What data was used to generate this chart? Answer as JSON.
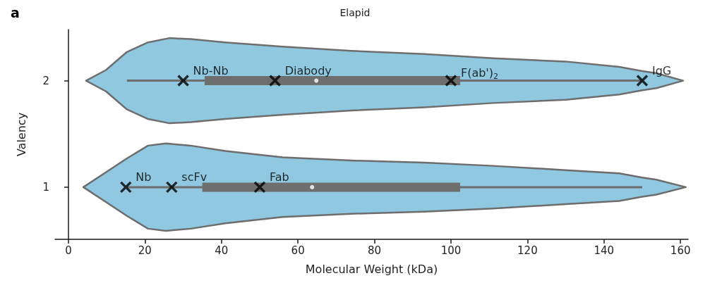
{
  "chart_data": {
    "type": "line",
    "title": "Elapid",
    "xlabel": "Molecular Weight (kDa)",
    "ylabel": "Valency",
    "annotations": [
      "a",
      {
        "text": "Nb-Nb",
        "x": 30,
        "y": 2
      },
      {
        "text": "Diabody",
        "x": 54,
        "y": 2
      },
      {
        "text": "F(ab')$_{2}$",
        "x": 100,
        "y": 2
      },
      {
        "text": "IgG",
        "x": 150,
        "y": 2
      },
      {
        "text": "Nb",
        "x": 15,
        "y": 1
      },
      {
        "text": "scFv",
        "x": 27,
        "y": 1
      },
      {
        "text": "Fab",
        "x": 50,
        "y": 1
      }
    ],
    "xlim": [
      -3.5,
      162
    ],
    "xticks": [
      0,
      20,
      40,
      60,
      80,
      100,
      120,
      140,
      160
    ],
    "ylim": [
      0.51,
      2.48
    ],
    "yticks": [
      1,
      2
    ],
    "grid": false,
    "colors": [
      "#90c8df",
      "#8fc8e0"
    ],
    "series": [
      {
        "type": "line",
        "color": "#6e6e6e",
        "x": [
          4.6,
          9.8,
          15.3,
          20.8,
          26.4,
          32,
          41,
          56,
          74,
          93,
          111,
          130,
          144,
          150,
          153.7,
          160.7
        ],
        "values": [
          null,
          null,
          2,
          2,
          2,
          2,
          2,
          2,
          2,
          2,
          2,
          2,
          2,
          2,
          null,
          null
        ],
        "lower": [
          2,
          1.9,
          1.73,
          1.64,
          1.6,
          1.61,
          1.64,
          1.68,
          1.72,
          1.75,
          1.79,
          1.82,
          1.87,
          1.91,
          1.93,
          2
        ],
        "upper": [
          2,
          2.1,
          2.27,
          2.36,
          2.4,
          2.39,
          2.36,
          2.32,
          2.28,
          2.25,
          2.21,
          2.18,
          2.13,
          2.09,
          2.07,
          2
        ]
      },
      {
        "type": "line",
        "color": "#6d6d6d",
        "x": [
          3.9,
          9.8,
          15.3,
          20.8,
          25.5,
          32,
          41,
          56,
          74,
          93,
          111,
          130,
          144,
          150,
          153.7,
          161.4
        ],
        "values": [
          null,
          null,
          1,
          1,
          1,
          1,
          1,
          1,
          1,
          1,
          1,
          1,
          1,
          1,
          null,
          null
        ],
        "lower": [
          1,
          0.86,
          0.73,
          0.61,
          0.59,
          0.61,
          0.66,
          0.72,
          0.75,
          0.77,
          0.8,
          0.84,
          0.87,
          0.91,
          0.93,
          1
        ],
        "upper": [
          1,
          1.14,
          1.27,
          1.39,
          1.41,
          1.39,
          1.34,
          1.28,
          1.25,
          1.23,
          1.2,
          1.16,
          1.13,
          1.09,
          1.07,
          1
        ]
      },
      {
        "type": "line",
        "color": "#6e6e6e",
        "x": [
          35.6,
          102.4
        ],
        "values": [
          2,
          2
        ]
      },
      {
        "type": "line",
        "color": "#6e6e6e",
        "x": [
          35,
          102.4
        ],
        "values": [
          1,
          1
        ]
      },
      {
        "type": "scatter",
        "marker": "circle",
        "color": "#ffffff",
        "x": [
          64.8,
          63.7
        ],
        "values": [
          2,
          1
        ]
      },
      {
        "type": "scatter",
        "marker": "cross",
        "color": "#000000",
        "x": [
          30,
          54,
          100,
          150,
          15,
          27,
          50
        ],
        "values": [
          2,
          2,
          2,
          2,
          1,
          1,
          1
        ]
      }
    ]
  }
}
